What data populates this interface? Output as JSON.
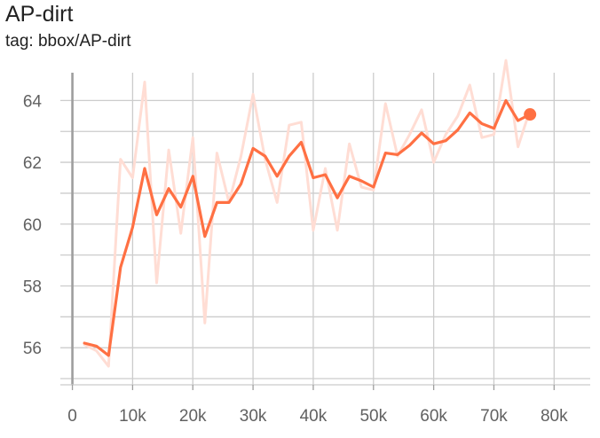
{
  "title": "AP-dirt",
  "tag_label": "tag: bbox/AP-dirt",
  "colors": {
    "line": "#ff7043",
    "raw": "#ffddd4",
    "grid": "#cccccc",
    "axis": "#9e9e9e"
  },
  "chart_data": {
    "type": "line",
    "title": "AP-dirt",
    "xlabel": "",
    "ylabel": "",
    "xlim": [
      -2000,
      86000
    ],
    "ylim": [
      54.8,
      64.9
    ],
    "xticks": [
      0,
      10000,
      20000,
      30000,
      40000,
      50000,
      60000,
      70000,
      80000
    ],
    "xtick_labels": [
      "0",
      "10k",
      "20k",
      "30k",
      "40k",
      "50k",
      "60k",
      "70k",
      "80k"
    ],
    "yticks": [
      56,
      58,
      60,
      62,
      64
    ],
    "ytick_labels": [
      "56",
      "58",
      "60",
      "62",
      "64"
    ],
    "grid": true,
    "series": [
      {
        "style": "raw",
        "x": [
          2000,
          4000,
          6000,
          8000,
          10000,
          12000,
          14000,
          16000,
          18000,
          20000,
          22000,
          24000,
          26000,
          28000,
          30000,
          32000,
          34000,
          36000,
          38000,
          40000,
          42000,
          44000,
          46000,
          48000,
          50000,
          52000,
          54000,
          56000,
          58000,
          60000,
          62000,
          64000,
          66000,
          68000,
          70000,
          72000,
          74000,
          76000
        ],
        "y": [
          56.1,
          55.9,
          55.4,
          62.1,
          61.5,
          64.6,
          58.1,
          62.4,
          59.7,
          62.8,
          56.8,
          62.3,
          60.7,
          62.2,
          64.2,
          62.1,
          60.7,
          63.2,
          63.3,
          59.8,
          61.8,
          59.8,
          62.6,
          61.2,
          61.1,
          63.9,
          62.2,
          62.9,
          63.7,
          62.0,
          62.9,
          63.5,
          64.5,
          62.8,
          62.9,
          65.3,
          62.5,
          63.7
        ]
      },
      {
        "style": "smoothed",
        "x": [
          2000,
          4000,
          6000,
          8000,
          10000,
          12000,
          14000,
          16000,
          18000,
          20000,
          22000,
          24000,
          26000,
          28000,
          30000,
          32000,
          34000,
          36000,
          38000,
          40000,
          42000,
          44000,
          46000,
          48000,
          50000,
          52000,
          54000,
          56000,
          58000,
          60000,
          62000,
          64000,
          66000,
          68000,
          70000,
          72000,
          74000,
          76000
        ],
        "y": [
          56.15,
          56.05,
          55.75,
          58.6,
          59.9,
          61.8,
          60.3,
          61.15,
          60.55,
          61.55,
          59.6,
          60.7,
          60.7,
          61.3,
          62.45,
          62.2,
          61.55,
          62.2,
          62.65,
          61.5,
          61.6,
          60.85,
          61.55,
          61.4,
          61.2,
          62.3,
          62.25,
          62.55,
          62.95,
          62.6,
          62.7,
          63.05,
          63.6,
          63.25,
          63.1,
          64.0,
          63.35,
          63.55
        ]
      }
    ]
  }
}
